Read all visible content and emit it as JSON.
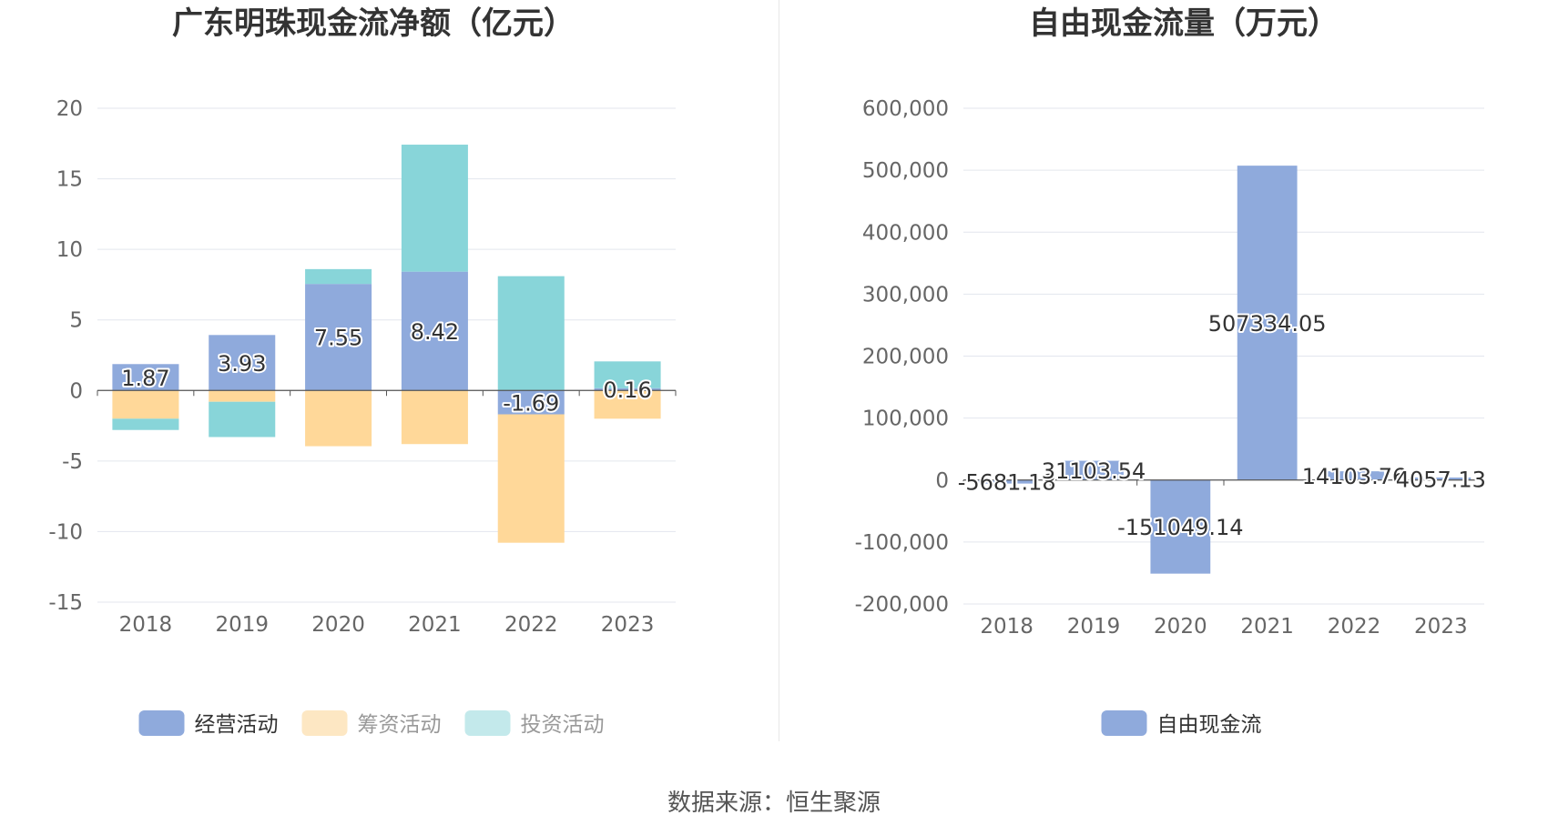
{
  "chart_data": [
    {
      "type": "bar",
      "stacked": true,
      "title": "广东明珠现金流净额（亿元）",
      "categories": [
        "2018",
        "2019",
        "2020",
        "2021",
        "2022",
        "2023"
      ],
      "series": [
        {
          "name": "经营活动",
          "values": [
            1.87,
            3.93,
            7.55,
            8.42,
            -1.69,
            0.16
          ],
          "color": "#8faadc"
        },
        {
          "name": "筹资活动",
          "values": [
            -2.0,
            -0.8,
            -3.95,
            -3.8,
            -9.1,
            -2.0
          ],
          "color": "#ffd899"
        },
        {
          "name": "投资活动",
          "values": [
            -0.8,
            -2.5,
            1.05,
            9.0,
            8.1,
            1.9
          ],
          "color": "#88d5d9"
        }
      ],
      "data_labels": [
        "1.87",
        "3.93",
        "7.55",
        "8.42",
        "-1.69",
        "0.16"
      ],
      "yticks": [
        "20",
        "15",
        "10",
        "5",
        "0",
        "-5",
        "-10",
        "-15"
      ],
      "ylim": [
        -15,
        20
      ],
      "grid": true,
      "legend_position": "bottom"
    },
    {
      "type": "bar",
      "title": "自由现金流量（万元）",
      "categories": [
        "2018",
        "2019",
        "2020",
        "2021",
        "2022",
        "2023"
      ],
      "series": [
        {
          "name": "自由现金流",
          "values": [
            -5681.18,
            31103.54,
            -151049.14,
            507334.05,
            14103.76,
            4057.13
          ],
          "color": "#8faadc"
        }
      ],
      "data_labels": [
        "-5681.18",
        "31103.54",
        "-151049.14",
        "507334.05",
        "14103.76",
        "4057.13"
      ],
      "yticks": [
        "600,000",
        "500,000",
        "400,000",
        "300,000",
        "200,000",
        "100,000",
        "0",
        "-100,000",
        "-200,000"
      ],
      "ylim": [
        -200000,
        600000
      ],
      "grid": true,
      "legend_position": "bottom"
    }
  ],
  "footer": {
    "source": "数据来源：恒生聚源"
  }
}
